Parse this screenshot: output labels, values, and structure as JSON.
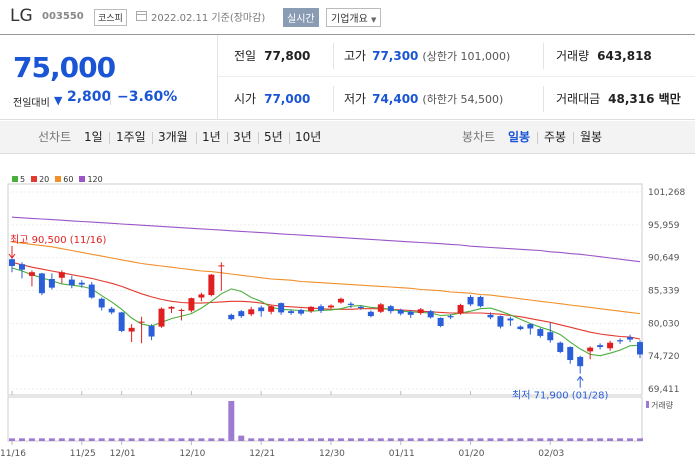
{
  "header": {
    "name": "LG",
    "code": "003550",
    "market": "코스피",
    "date": "2022.02.11 기준(장마감)",
    "realtime": "실시간",
    "company_info": "기업개요"
  },
  "summary": {
    "price": "75,000",
    "diff_label": "전일대비",
    "diff_value": "2,800",
    "diff_rate": "−3.60%",
    "prev_label": "전일",
    "prev_value": "77,800",
    "high_label": "고가",
    "high_value": "77,300",
    "upper_limit": "(상한가 101,000)",
    "volume_label": "거래량",
    "volume_value": "643,818",
    "open_label": "시가",
    "open_value": "77,000",
    "low_label": "저가",
    "low_value": "74,400",
    "lower_limit": "(하한가 54,500)",
    "amount_label": "거래대금",
    "amount_value": "48,316 백만"
  },
  "tabs": {
    "line_chart": "선차트",
    "d1": "1일",
    "w1": "1주일",
    "m3": "3개월",
    "y1": "1년",
    "y3": "3년",
    "y5": "5년",
    "y10": "10년",
    "candle_chart": "봉차트",
    "daily": "일봉",
    "weekly": "주봉",
    "monthly": "월봉"
  },
  "colors": {
    "up": "#e02020",
    "down": "#2b5fd9",
    "ma5": "#4caf3c",
    "ma20": "#e23a2e",
    "ma60": "#f0902a",
    "ma120": "#9a55c8",
    "volume": "#9d7bd0"
  },
  "chart_data": {
    "type": "candlestick",
    "legend": [
      "5",
      "20",
      "60",
      "120"
    ],
    "y_ticks": [
      "101,268",
      "95,959",
      "90,649",
      "85,339",
      "80,030",
      "74,720",
      "69,411"
    ],
    "ylim": [
      69411,
      101268
    ],
    "x_ticks": [
      {
        "label": "11/16",
        "index": 0
      },
      {
        "label": "11/25",
        "index": 7
      },
      {
        "label": "12/01",
        "index": 11
      },
      {
        "label": "12/10",
        "index": 18
      },
      {
        "label": "12/21",
        "index": 25
      },
      {
        "label": "12/30",
        "index": 32
      },
      {
        "label": "01/11",
        "index": 39
      },
      {
        "label": "01/20",
        "index": 46
      },
      {
        "label": "02/03",
        "index": 54
      }
    ],
    "annotations": {
      "high": "최고 90,500 (11/16)",
      "low": "최저 71,900 (01/28)"
    },
    "volume_label": "거래량",
    "candles": [
      {
        "o": 90400,
        "c": 89300,
        "h": 90500,
        "l": 88300
      },
      {
        "o": 89600,
        "c": 88700,
        "h": 89900,
        "l": 87300
      },
      {
        "o": 87700,
        "c": 88300,
        "h": 88600,
        "l": 86000
      },
      {
        "o": 88100,
        "c": 84900,
        "h": 88200,
        "l": 84600
      },
      {
        "o": 87200,
        "c": 85800,
        "h": 88100,
        "l": 85500
      },
      {
        "o": 87400,
        "c": 88300,
        "h": 88600,
        "l": 86500
      },
      {
        "o": 87100,
        "c": 86200,
        "h": 87700,
        "l": 85700
      },
      {
        "o": 86600,
        "c": 86300,
        "h": 87000,
        "l": 85800
      },
      {
        "o": 86300,
        "c": 84200,
        "h": 86700,
        "l": 84000
      },
      {
        "o": 84000,
        "c": 82600,
        "h": 84200,
        "l": 82100
      },
      {
        "o": 82400,
        "c": 81800,
        "h": 82700,
        "l": 81500
      },
      {
        "o": 81800,
        "c": 78800,
        "h": 81900,
        "l": 78600
      },
      {
        "o": 78700,
        "c": 79300,
        "h": 79900,
        "l": 77000
      },
      {
        "o": 80300,
        "c": 80300,
        "h": 81100,
        "l": 76800
      },
      {
        "o": 79600,
        "c": 77900,
        "h": 79900,
        "l": 77300
      },
      {
        "o": 79500,
        "c": 82400,
        "h": 82600,
        "l": 79300
      },
      {
        "o": 82400,
        "c": 82700,
        "h": 82800,
        "l": 81700
      },
      {
        "o": 82100,
        "c": 82200,
        "h": 82400,
        "l": 80500
      },
      {
        "o": 82100,
        "c": 84100,
        "h": 84200,
        "l": 81800
      },
      {
        "o": 84200,
        "c": 84700,
        "h": 85000,
        "l": 83600
      },
      {
        "o": 84600,
        "c": 87900,
        "h": 88000,
        "l": 84400
      },
      {
        "o": 89300,
        "c": 89400,
        "h": 89900,
        "l": 85300
      },
      {
        "o": 81400,
        "c": 80700,
        "h": 81600,
        "l": 80500
      },
      {
        "o": 82000,
        "c": 81200,
        "h": 82200,
        "l": 80900
      },
      {
        "o": 81500,
        "c": 82300,
        "h": 82700,
        "l": 81200
      },
      {
        "o": 82600,
        "c": 82000,
        "h": 82900,
        "l": 81100
      },
      {
        "o": 81900,
        "c": 82800,
        "h": 83000,
        "l": 81500
      },
      {
        "o": 83300,
        "c": 81800,
        "h": 83400,
        "l": 81400
      },
      {
        "o": 82000,
        "c": 81700,
        "h": 82300,
        "l": 81400
      },
      {
        "o": 82200,
        "c": 81600,
        "h": 82400,
        "l": 81300
      },
      {
        "o": 82000,
        "c": 82700,
        "h": 82800,
        "l": 81700
      },
      {
        "o": 82800,
        "c": 82100,
        "h": 83100,
        "l": 81700
      },
      {
        "o": 82600,
        "c": 82900,
        "h": 83100,
        "l": 82400
      },
      {
        "o": 83400,
        "c": 84000,
        "h": 84200,
        "l": 83200
      },
      {
        "o": 83200,
        "c": 83000,
        "h": 83500,
        "l": 82500
      },
      {
        "o": 82700,
        "c": 82500,
        "h": 82900,
        "l": 82200
      },
      {
        "o": 81900,
        "c": 81200,
        "h": 82100,
        "l": 81000
      },
      {
        "o": 81900,
        "c": 83100,
        "h": 83300,
        "l": 81700
      },
      {
        "o": 82800,
        "c": 82000,
        "h": 83000,
        "l": 81600
      },
      {
        "o": 82200,
        "c": 81600,
        "h": 82400,
        "l": 81300
      },
      {
        "o": 81900,
        "c": 81400,
        "h": 82200,
        "l": 80900
      },
      {
        "o": 81700,
        "c": 82300,
        "h": 82500,
        "l": 81400
      },
      {
        "o": 82000,
        "c": 81000,
        "h": 82200,
        "l": 80800
      },
      {
        "o": 80900,
        "c": 79600,
        "h": 81000,
        "l": 79400
      },
      {
        "o": 81200,
        "c": 81000,
        "h": 81500,
        "l": 80700
      },
      {
        "o": 81600,
        "c": 83000,
        "h": 83200,
        "l": 81400
      },
      {
        "o": 84300,
        "c": 83100,
        "h": 84600,
        "l": 82800
      },
      {
        "o": 84300,
        "c": 82800,
        "h": 84500,
        "l": 82600
      },
      {
        "o": 81400,
        "c": 81000,
        "h": 81800,
        "l": 80700
      },
      {
        "o": 81200,
        "c": 79500,
        "h": 81300,
        "l": 79200
      },
      {
        "o": 80800,
        "c": 80500,
        "h": 81100,
        "l": 79600
      },
      {
        "o": 79500,
        "c": 79100,
        "h": 79700,
        "l": 78900
      },
      {
        "o": 79900,
        "c": 79200,
        "h": 80000,
        "l": 78200
      },
      {
        "o": 79100,
        "c": 78000,
        "h": 79300,
        "l": 77700
      },
      {
        "o": 78600,
        "c": 77300,
        "h": 80100,
        "l": 76900
      },
      {
        "o": 76900,
        "c": 75400,
        "h": 77100,
        "l": 75200
      },
      {
        "o": 76200,
        "c": 74100,
        "h": 76300,
        "l": 73500
      },
      {
        "o": 74600,
        "c": 73100,
        "h": 74800,
        "l": 71900
      },
      {
        "o": 75500,
        "c": 76100,
        "h": 76300,
        "l": 74200
      },
      {
        "o": 76500,
        "c": 76200,
        "h": 76800,
        "l": 75800
      },
      {
        "o": 76000,
        "c": 76900,
        "h": 77200,
        "l": 75600
      },
      {
        "o": 77300,
        "c": 77100,
        "h": 77600,
        "l": 76700
      },
      {
        "o": 77800,
        "c": 77400,
        "h": 78200,
        "l": 77000
      },
      {
        "o": 77000,
        "c": 75000,
        "h": 77300,
        "l": 74400
      }
    ],
    "ma5": [
      89000,
      88500,
      87900,
      87400,
      86900,
      86400,
      86200,
      86000,
      85600,
      84500,
      83500,
      82300,
      80900,
      79900,
      79600,
      80200,
      80800,
      81200,
      81600,
      82500,
      83600,
      84800,
      85600,
      85200,
      84200,
      83600,
      82600,
      82300,
      82200,
      82100,
      82000,
      82100,
      82200,
      82400,
      82800,
      82900,
      82600,
      82500,
      82300,
      82000,
      81900,
      81800,
      81700,
      81300,
      81400,
      81700,
      82000,
      82400,
      82500,
      82000,
      81400,
      80700,
      80000,
      79400,
      78900,
      78200,
      77000,
      75900,
      75000,
      74800,
      75200,
      75700,
      76400,
      76500
    ],
    "ma20": [
      89900,
      89500,
      89100,
      88800,
      88500,
      88200,
      87900,
      87600,
      87300,
      86900,
      86500,
      86000,
      85400,
      84800,
      84300,
      83900,
      83600,
      83400,
      83300,
      83300,
      83400,
      83500,
      83600,
      83600,
      83500,
      83300,
      83000,
      82800,
      82700,
      82600,
      82500,
      82400,
      82300,
      82300,
      82300,
      82400,
      82400,
      82400,
      82300,
      82200,
      82100,
      82000,
      81900,
      81800,
      81700,
      81700,
      81700,
      81700,
      81600,
      81500,
      81300,
      81100,
      80800,
      80500,
      80200,
      79800,
      79400,
      79000,
      78600,
      78300,
      78100,
      77900,
      77800,
      77500
    ],
    "ma60": [
      93200,
      93000,
      92800,
      92600,
      92400,
      92100,
      91800,
      91500,
      91200,
      90900,
      90600,
      90300,
      90000,
      89700,
      89500,
      89300,
      89100,
      88900,
      88700,
      88500,
      88400,
      88200,
      88000,
      87800,
      87600,
      87400,
      87200,
      87100,
      87000,
      86800,
      86700,
      86600,
      86500,
      86400,
      86300,
      86200,
      86100,
      86000,
      85900,
      85800,
      85700,
      85500,
      85400,
      85300,
      85100,
      85000,
      84900,
      84700,
      84600,
      84400,
      84200,
      84000,
      83800,
      83600,
      83400,
      83200,
      83000,
      82800,
      82600,
      82400,
      82200,
      82000,
      81800,
      81600
    ],
    "ma120": [
      97200,
      97100,
      97000,
      96900,
      96800,
      96700,
      96600,
      96500,
      96400,
      96300,
      96200,
      96100,
      96000,
      95900,
      95800,
      95700,
      95600,
      95500,
      95400,
      95300,
      95200,
      95100,
      95000,
      94900,
      94800,
      94700,
      94600,
      94500,
      94400,
      94300,
      94200,
      94100,
      94000,
      93900,
      93800,
      93700,
      93600,
      93500,
      93400,
      93300,
      93200,
      93100,
      93000,
      92900,
      92800,
      92700,
      92500,
      92400,
      92300,
      92200,
      92100,
      92000,
      91900,
      91800,
      91600,
      91500,
      91300,
      91200,
      91000,
      90800,
      90600,
      90400,
      90200,
      90000
    ],
    "volume": [
      1,
      1,
      1,
      1,
      1,
      1,
      1,
      1,
      1,
      1,
      1,
      1,
      1,
      1,
      1,
      1,
      1,
      1,
      1,
      1,
      1,
      1,
      15,
      2,
      1,
      1,
      1,
      1,
      1,
      1,
      1,
      1,
      1,
      1,
      1,
      1,
      1,
      1,
      1,
      1,
      1,
      1,
      1,
      1,
      1,
      1,
      1,
      1,
      1,
      1,
      1,
      1,
      1,
      1,
      1,
      1,
      1,
      1,
      1,
      1,
      1,
      1,
      1,
      1
    ]
  }
}
